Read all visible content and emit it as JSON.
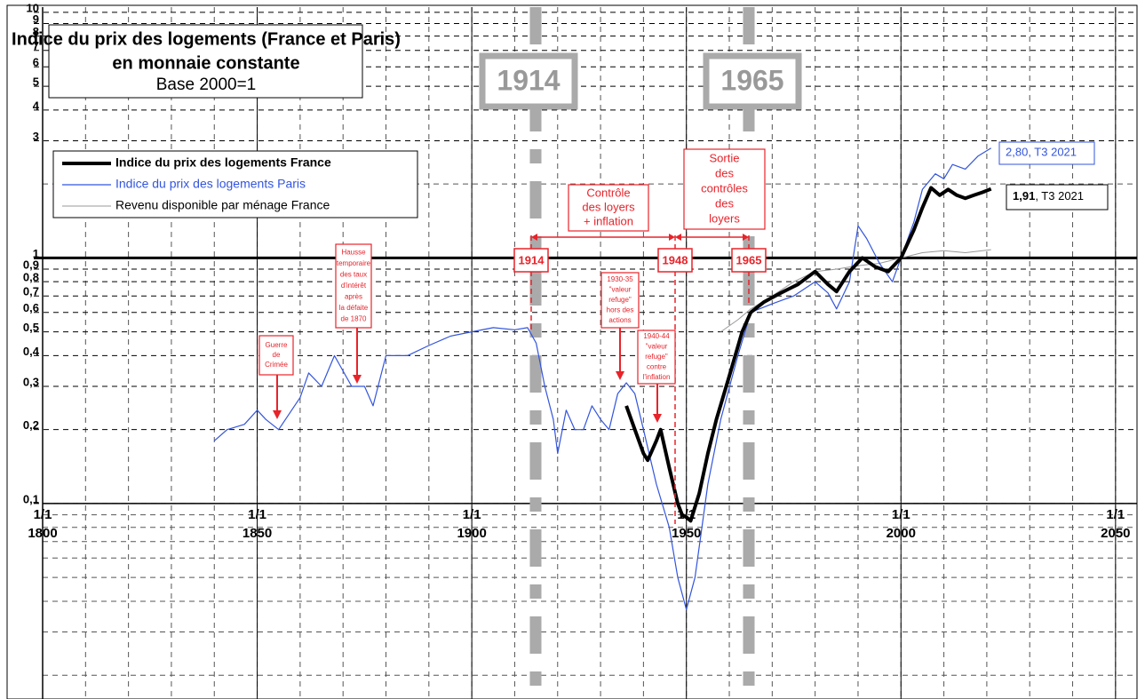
{
  "chart_data": {
    "type": "line",
    "title": "Indice du prix des logements (France et Paris)",
    "subtitle": "en monnaie constante",
    "subtitle2": "Base 2000=1",
    "log_y": true,
    "grid": true,
    "xlim": [
      1800,
      2055
    ],
    "xticks": [
      1800,
      1850,
      1900,
      1950,
      2000,
      2050
    ],
    "xtick_prefix": "1/1",
    "xgrid_minor_step": 10,
    "ylim": [
      0.016,
      10.5
    ],
    "yticks": [
      10,
      9,
      8,
      7,
      6,
      5,
      4,
      3,
      1,
      {
        "value": 0.9,
        "label": "0,9"
      },
      {
        "value": 0.8,
        "label": "0,8"
      },
      {
        "value": 0.7,
        "label": "0,7"
      },
      {
        "value": 0.6,
        "label": "0,6"
      },
      {
        "value": 0.5,
        "label": "0,5"
      },
      {
        "value": 0.4,
        "label": "0,4"
      },
      {
        "value": 0.3,
        "label": "0,3"
      },
      {
        "value": 0.2,
        "label": "0,2"
      },
      {
        "value": 0.1,
        "label": "0,1"
      }
    ],
    "yminor": [
      2,
      0.09,
      0.08,
      0.07,
      0.06,
      0.05,
      0.04,
      0.03,
      0.02
    ],
    "series": [
      {
        "name": "Indice du prix des logements France",
        "color": "#000000",
        "width": 4,
        "x": [
          1936,
          1938,
          1940,
          1941,
          1943,
          1944,
          1946,
          1948,
          1949,
          1950,
          1951,
          1953,
          1955,
          1957,
          1960,
          1963,
          1965,
          1968,
          1972,
          1976,
          1980,
          1983,
          1985,
          1988,
          1991,
          1994,
          1997,
          2000,
          2003,
          2005,
          2007,
          2009,
          2011,
          2013,
          2015,
          2017,
          2019,
          2021
        ],
        "values": [
          0.25,
          0.2,
          0.16,
          0.15,
          0.18,
          0.2,
          0.14,
          0.1,
          0.09,
          0.088,
          0.085,
          0.11,
          0.16,
          0.22,
          0.33,
          0.5,
          0.6,
          0.66,
          0.72,
          0.78,
          0.88,
          0.78,
          0.73,
          0.88,
          1.0,
          0.92,
          0.88,
          1.0,
          1.3,
          1.6,
          1.93,
          1.8,
          1.9,
          1.8,
          1.75,
          1.8,
          1.85,
          1.91
        ],
        "value_label": "1,91",
        "note": ", T3 2021"
      },
      {
        "name": "Indice du prix des logements Paris",
        "color": "#3355dd",
        "width": 1.2,
        "x": [
          1840,
          1843,
          1847,
          1850,
          1852,
          1855,
          1860,
          1862,
          1865,
          1868,
          1872,
          1875,
          1877,
          1880,
          1885,
          1890,
          1895,
          1900,
          1905,
          1910,
          1913,
          1915,
          1917,
          1919,
          1920,
          1922,
          1924,
          1926,
          1928,
          1930,
          1932,
          1934,
          1936,
          1938,
          1940,
          1943,
          1946,
          1948,
          1950,
          1952,
          1955,
          1958,
          1962,
          1965,
          1970,
          1975,
          1980,
          1983,
          1985,
          1988,
          1990,
          1992,
          1995,
          1998,
          2000,
          2003,
          2005,
          2008,
          2010,
          2012,
          2015,
          2018,
          2021
        ],
        "values": [
          0.18,
          0.2,
          0.21,
          0.24,
          0.22,
          0.2,
          0.27,
          0.34,
          0.3,
          0.4,
          0.3,
          0.3,
          0.25,
          0.4,
          0.4,
          0.44,
          0.48,
          0.5,
          0.52,
          0.51,
          0.52,
          0.45,
          0.3,
          0.22,
          0.16,
          0.24,
          0.2,
          0.2,
          0.25,
          0.22,
          0.2,
          0.28,
          0.31,
          0.28,
          0.2,
          0.12,
          0.08,
          0.05,
          0.037,
          0.05,
          0.12,
          0.22,
          0.4,
          0.6,
          0.65,
          0.7,
          0.8,
          0.72,
          0.62,
          0.8,
          1.35,
          1.2,
          0.95,
          0.8,
          1.0,
          1.4,
          1.9,
          2.2,
          2.1,
          2.4,
          2.3,
          2.6,
          2.8
        ],
        "value_label": "2,80",
        "note": ", T3 2021"
      },
      {
        "name": "Revenu disponible par ménage France",
        "color": "#999999",
        "width": 1,
        "x": [
          1958,
          1962,
          1965,
          1970,
          1975,
          1980,
          1985,
          1990,
          1995,
          2000,
          2005,
          2010,
          2015,
          2021
        ],
        "values": [
          0.5,
          0.56,
          0.62,
          0.7,
          0.8,
          0.88,
          0.9,
          0.93,
          0.95,
          1.0,
          1.05,
          1.07,
          1.05,
          1.08
        ]
      }
    ],
    "grey_markers": [
      "1914",
      "1965"
    ],
    "red_markers": [
      "1914",
      "1948",
      "1965"
    ],
    "annotations": [
      {
        "lines": [
          "Guerre",
          "de",
          "Crimée"
        ]
      },
      {
        "lines": [
          "Hausse",
          "temporaire",
          "des taux",
          "d'intérêt",
          "après",
          "la défaite",
          "de 1870"
        ]
      },
      {
        "lines": [
          "1930-35",
          "\"valeur",
          "refuge\"",
          "hors des",
          "actions"
        ]
      },
      {
        "lines": [
          "1940-44",
          "\"valeur",
          "refuge\"",
          "contre",
          "l'inflation"
        ]
      },
      {
        "lines": [
          "Contrôle",
          "des loyers",
          "+ inflation"
        ]
      },
      {
        "lines": [
          "Sortie",
          "des",
          "contrôles",
          "des",
          "loyers"
        ]
      }
    ]
  }
}
